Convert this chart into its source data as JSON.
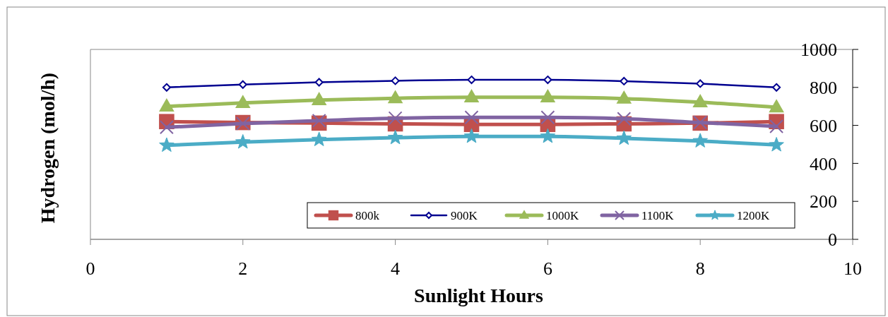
{
  "chart_data": {
    "type": "line",
    "xlabel": "Sunlight Hours",
    "ylabel": "Hydrogen (mol/h)",
    "x": [
      1,
      2,
      3,
      4,
      5,
      6,
      7,
      8,
      9
    ],
    "xlim": [
      0,
      10
    ],
    "xticks": [
      0,
      2,
      4,
      6,
      8,
      10
    ],
    "ylim": [
      0,
      1000
    ],
    "yticks": [
      0,
      200,
      400,
      600,
      800,
      1000
    ],
    "grid": false,
    "legend": "bottom right",
    "line_style": "solid",
    "series": [
      {
        "name": "800k",
        "color": "#c0504d",
        "marker": "square",
        "values": [
          620,
          615,
          612,
          608,
          605,
          605,
          608,
          612,
          620
        ]
      },
      {
        "name": "900K",
        "color": "#000090",
        "marker": "diamond",
        "values": [
          800,
          815,
          827,
          835,
          840,
          840,
          833,
          820,
          800
        ]
      },
      {
        "name": "1000K",
        "color": "#9bbb59",
        "marker": "triangle",
        "values": [
          700,
          718,
          733,
          743,
          748,
          748,
          741,
          722,
          695
        ]
      },
      {
        "name": "1100K",
        "color": "#8064a2",
        "marker": "cross",
        "values": [
          590,
          610,
          625,
          638,
          642,
          642,
          635,
          615,
          595
        ]
      },
      {
        "name": "1200K",
        "color": "#4bacc6",
        "marker": "star",
        "values": [
          495,
          512,
          525,
          535,
          542,
          542,
          532,
          518,
          497
        ]
      }
    ]
  }
}
